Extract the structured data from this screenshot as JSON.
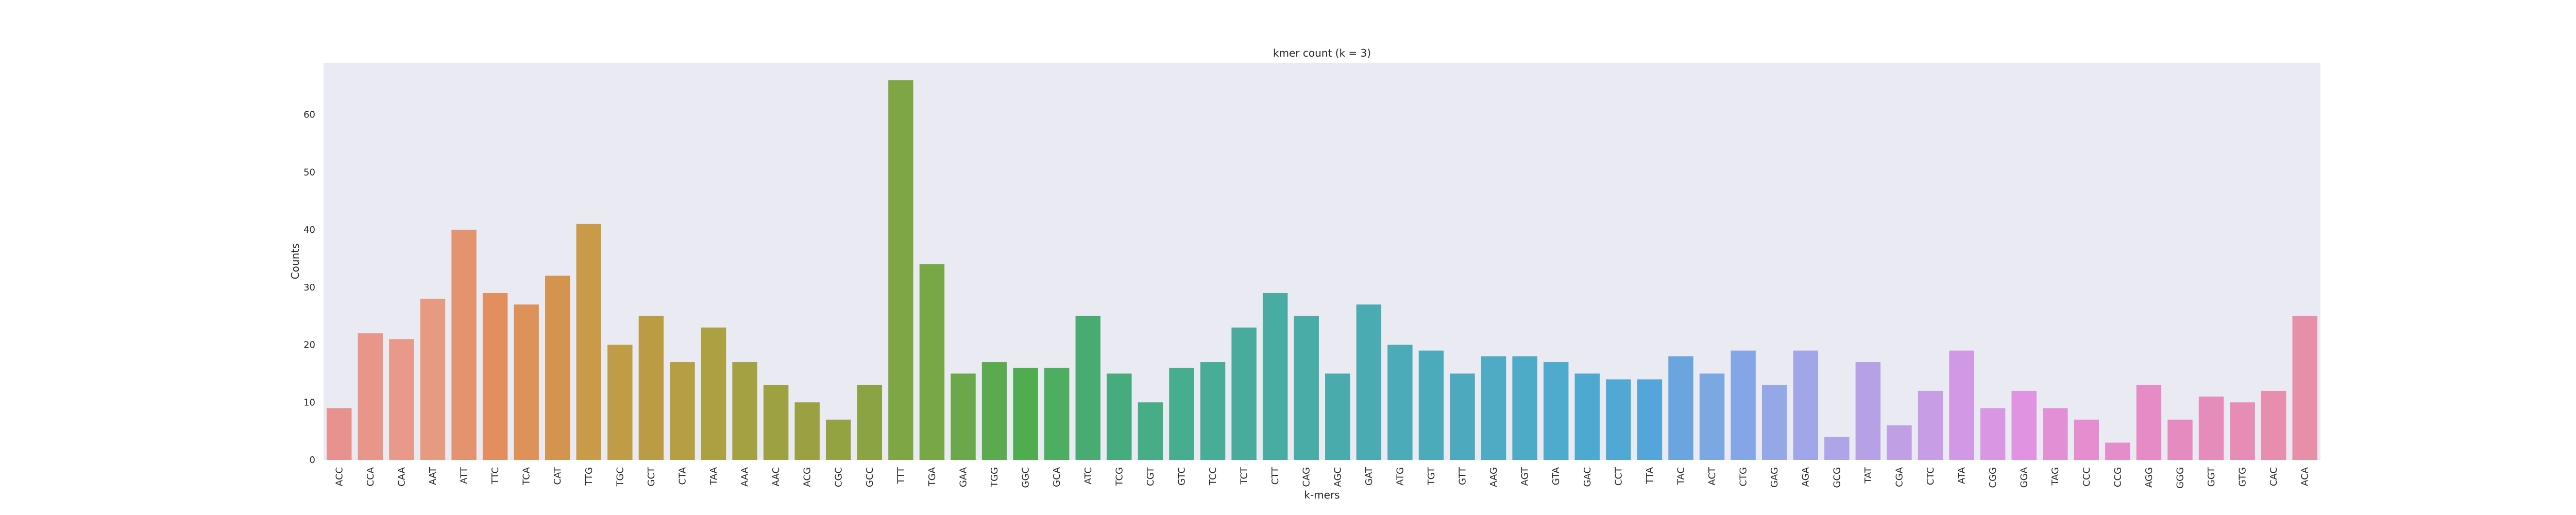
{
  "chart_data": {
    "type": "bar",
    "title": "kmer count (k = 3)",
    "xlabel": "k-mers",
    "ylabel": "Counts",
    "ylim": [
      0,
      69
    ],
    "yticks": [
      0,
      10,
      20,
      30,
      40,
      50,
      60
    ],
    "grid": false,
    "background_color": "#eaeaf2",
    "categories": [
      "ACC",
      "CCA",
      "CAA",
      "AAT",
      "ATT",
      "TTC",
      "TCA",
      "CAT",
      "TTG",
      "TGC",
      "GCT",
      "CTA",
      "TAA",
      "AAA",
      "AAC",
      "ACG",
      "CGC",
      "GCC",
      "TTT",
      "TGA",
      "GAA",
      "TGG",
      "GGC",
      "GCA",
      "ATC",
      "TCG",
      "CGT",
      "GTC",
      "TCC",
      "TCT",
      "CTT",
      "CAG",
      "AGC",
      "GAT",
      "ATG",
      "TGT",
      "GTT",
      "AAG",
      "AGT",
      "GTA",
      "GAC",
      "CCT",
      "TTA",
      "TAC",
      "ACT",
      "CTG",
      "GAG",
      "AGA",
      "GCG",
      "TAT",
      "CGA",
      "CTC",
      "ATA",
      "CGG",
      "GGA",
      "TAG",
      "CCC",
      "CCG",
      "AGG",
      "GGG",
      "GGT",
      "GTG",
      "CAC",
      "ACA"
    ],
    "values": [
      9,
      22,
      21,
      28,
      40,
      29,
      27,
      32,
      41,
      20,
      25,
      17,
      23,
      17,
      13,
      10,
      7,
      13,
      66,
      34,
      15,
      17,
      16,
      16,
      25,
      15,
      10,
      16,
      17,
      23,
      29,
      25,
      15,
      27,
      20,
      19,
      15,
      18,
      18,
      17,
      15,
      14,
      14,
      18,
      15,
      19,
      13,
      19,
      4,
      17,
      6,
      12,
      19,
      9,
      12,
      9,
      7,
      3,
      13,
      7,
      11,
      10,
      12,
      25
    ],
    "colors": [
      "#e8918f",
      "#e8958a",
      "#e8998a",
      "#e69a7f",
      "#e49370",
      "#e28e5e",
      "#de9158",
      "#d39450",
      "#c99a48",
      "#c19c47",
      "#bb9c44",
      "#b59e43",
      "#aba042",
      "#a4a142",
      "#9ea142",
      "#99a142",
      "#93a342",
      "#8aa443",
      "#7fa644",
      "#77a845",
      "#6ba84c",
      "#5caa50",
      "#4fad4f",
      "#4dae62",
      "#48ab71",
      "#46ac7d",
      "#47ad86",
      "#47ad8f",
      "#48ad96",
      "#48ab9c",
      "#49aca2",
      "#4aaca6",
      "#4aabac",
      "#4aabb2",
      "#4babb6",
      "#4cabbb",
      "#4da9be",
      "#4eabc3",
      "#4dabc8",
      "#4eabcd",
      "#4ea9d1",
      "#50a8d5",
      "#54a5d9",
      "#6aa5e0",
      "#7ba7e3",
      "#85a6e6",
      "#94a8e8",
      "#a1a6e8",
      "#aea4e8",
      "#b6a1e7",
      "#c09fe7",
      "#c79de6",
      "#d098e5",
      "#d896e3",
      "#e093e0",
      "#e38fd6",
      "#e58dcf",
      "#e58ccb",
      "#e68bc6",
      "#e68bc0",
      "#e68cba",
      "#e78cb5",
      "#e78eaf",
      "#e78fa8"
    ]
  }
}
